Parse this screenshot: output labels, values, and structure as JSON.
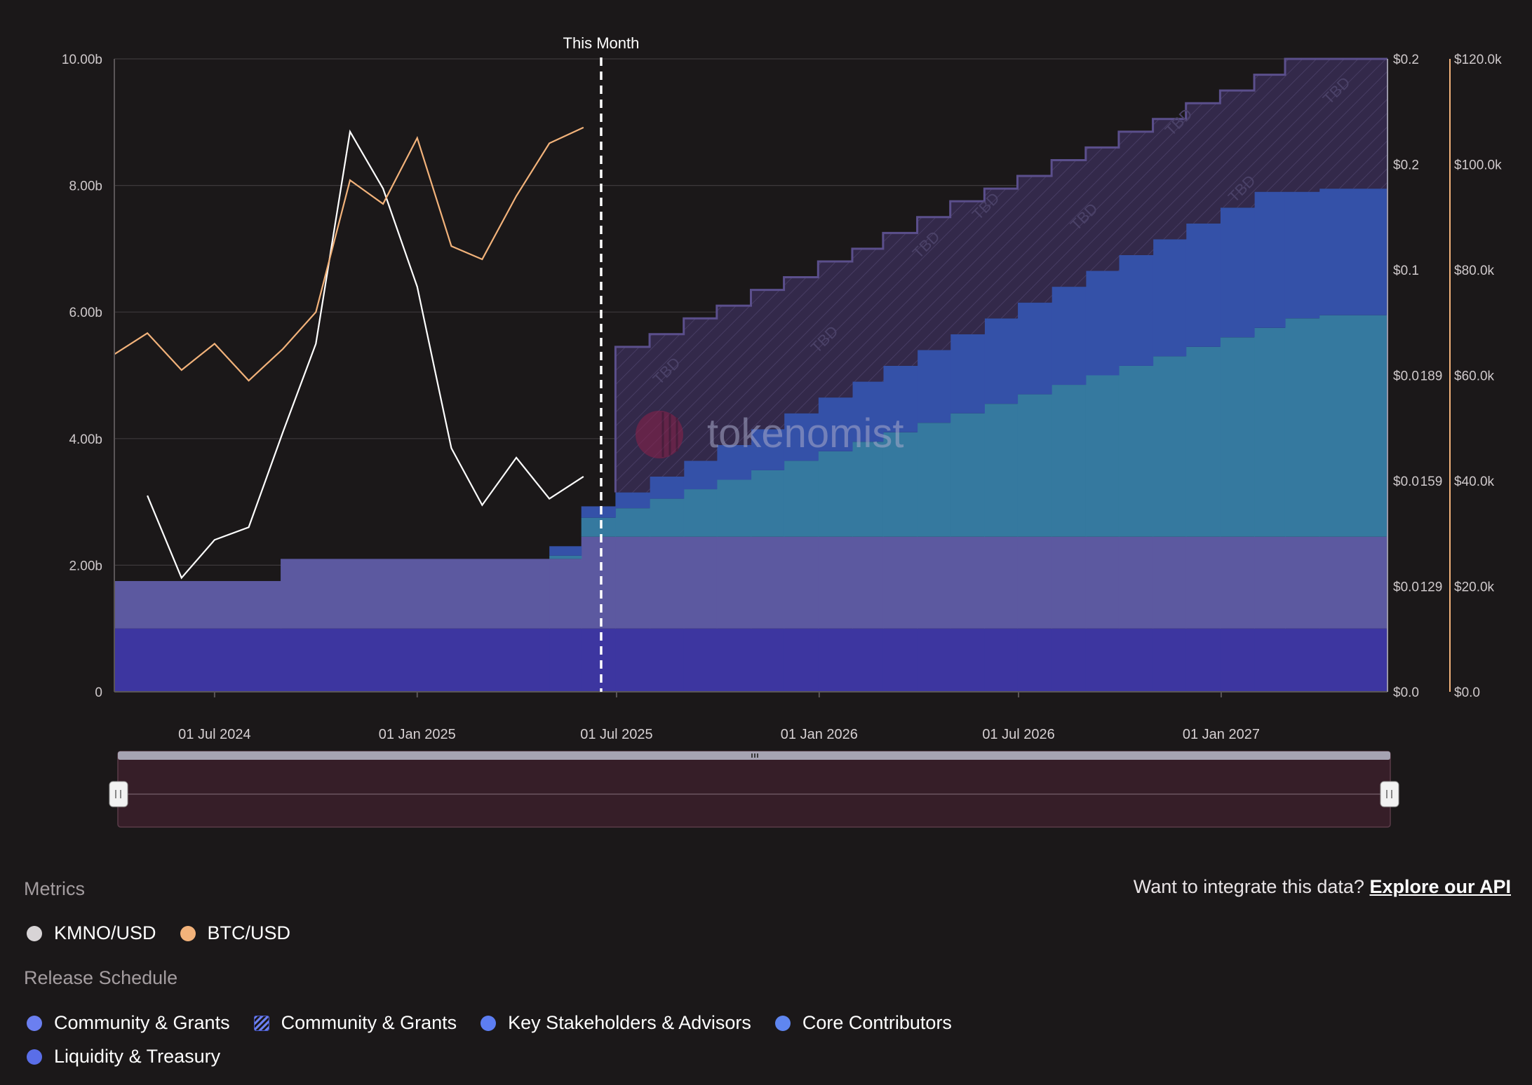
{
  "chart_data": {
    "type": "area",
    "annotation": "This Month",
    "annotation_x": "2025-06-17",
    "watermark": "tokenomist",
    "tbd_label": "TBD",
    "x_ticks": [
      "01 Jul 2024",
      "01 Jan 2025",
      "01 Jul 2025",
      "01 Jan 2026",
      "01 Jul 2026",
      "01 Jan 2027"
    ],
    "y_left_ticks": [
      "0",
      "2.00b",
      "4.00b",
      "6.00b",
      "8.00b",
      "10.00b"
    ],
    "y_left_lim": [
      0,
      10000000000
    ],
    "y_mid_ticks": [
      "$0.0",
      "$0.0 129",
      "$0.0 159",
      "$0.0 189",
      "$0.1",
      "$0.2",
      "$0.2"
    ],
    "y_right_ticks": [
      "$0.0",
      "$20.0k",
      "$40.0k",
      "$60.0k",
      "$80.0k",
      "$100.0k",
      "$120.0k"
    ],
    "y_right_lim": [
      0,
      120000
    ],
    "x_range": [
      "2024-04-01",
      "2027-06-01"
    ],
    "grid": true,
    "series": [
      {
        "name": "Liquidity & Treasury",
        "color": "#3d36a0",
        "points": [
          [
            "2024-04-01",
            1000000000
          ],
          [
            "2027-06-01",
            1000000000
          ]
        ]
      },
      {
        "name": "Community & Grants",
        "color": "#5c59a0",
        "points": [
          [
            "2024-04-01",
            750000000
          ],
          [
            "2024-08-30",
            1100000000
          ],
          [
            "2025-05-30",
            1450000000
          ],
          [
            "2027-06-01",
            1450000000
          ]
        ]
      },
      {
        "name": "Core Contributors",
        "color": "#35799f",
        "points": [
          [
            "2025-05-01",
            50000000
          ],
          [
            "2025-05-30",
            300000000
          ],
          [
            "2025-06-30",
            450000000
          ],
          [
            "2025-07-31",
            600000000
          ],
          [
            "2025-08-31",
            750000000
          ],
          [
            "2025-09-30",
            900000000
          ],
          [
            "2025-10-31",
            1050000000
          ],
          [
            "2025-11-30",
            1200000000
          ],
          [
            "2025-12-31",
            1350000000
          ],
          [
            "2026-01-31",
            1500000000
          ],
          [
            "2026-02-28",
            1650000000
          ],
          [
            "2026-03-31",
            1800000000
          ],
          [
            "2026-04-30",
            1950000000
          ],
          [
            "2026-05-31",
            2100000000
          ],
          [
            "2026-06-30",
            2250000000
          ],
          [
            "2026-07-31",
            2400000000
          ],
          [
            "2026-08-31",
            2550000000
          ],
          [
            "2026-09-30",
            2700000000
          ],
          [
            "2026-10-31",
            2850000000
          ],
          [
            "2026-11-30",
            3000000000
          ],
          [
            "2026-12-31",
            3150000000
          ],
          [
            "2027-01-31",
            3300000000
          ],
          [
            "2027-02-28",
            3450000000
          ],
          [
            "2027-03-31",
            3500000000
          ]
        ]
      },
      {
        "name": "Key Stakeholders & Advisors",
        "color": "#3451a8",
        "points": [
          [
            "2025-05-01",
            150000000
          ],
          [
            "2025-05-30",
            180000000
          ],
          [
            "2025-06-30",
            250000000
          ],
          [
            "2025-07-31",
            350000000
          ],
          [
            "2025-08-31",
            450000000
          ],
          [
            "2025-09-30",
            550000000
          ],
          [
            "2025-10-31",
            650000000
          ],
          [
            "2025-11-30",
            750000000
          ],
          [
            "2025-12-31",
            850000000
          ],
          [
            "2026-01-31",
            950000000
          ],
          [
            "2026-02-28",
            1050000000
          ],
          [
            "2026-03-31",
            1150000000
          ],
          [
            "2026-04-30",
            1250000000
          ],
          [
            "2026-05-31",
            1350000000
          ],
          [
            "2026-06-30",
            1450000000
          ],
          [
            "2026-07-31",
            1550000000
          ],
          [
            "2026-08-31",
            1650000000
          ],
          [
            "2026-09-30",
            1750000000
          ],
          [
            "2026-10-31",
            1850000000
          ],
          [
            "2026-11-30",
            1950000000
          ],
          [
            "2026-12-31",
            2050000000
          ],
          [
            "2027-01-31",
            2150000000
          ],
          [
            "2027-02-28",
            2000000000
          ],
          [
            "2027-03-31",
            2000000000
          ]
        ]
      },
      {
        "name": "Community & Grants (TBD)",
        "color": "#3a3055",
        "points": [
          [
            "2025-06-30",
            5450000000
          ],
          [
            "2025-07-31",
            5650000000
          ],
          [
            "2025-08-31",
            5900000000
          ],
          [
            "2025-09-30",
            6100000000
          ],
          [
            "2025-10-31",
            6350000000
          ],
          [
            "2025-11-30",
            6550000000
          ],
          [
            "2025-12-31",
            6800000000
          ],
          [
            "2026-01-31",
            7000000000
          ],
          [
            "2026-02-28",
            7250000000
          ],
          [
            "2026-03-31",
            7500000000
          ],
          [
            "2026-04-30",
            7750000000
          ],
          [
            "2026-05-31",
            7950000000
          ],
          [
            "2026-06-30",
            8150000000
          ],
          [
            "2026-07-31",
            8400000000
          ],
          [
            "2026-08-31",
            8600000000
          ],
          [
            "2026-09-30",
            8850000000
          ],
          [
            "2026-10-31",
            9050000000
          ],
          [
            "2026-11-30",
            9300000000
          ],
          [
            "2026-12-31",
            9500000000
          ],
          [
            "2027-01-31",
            9750000000
          ],
          [
            "2027-02-28",
            10000000000
          ],
          [
            "2027-03-31",
            10000000000
          ]
        ]
      }
    ],
    "price_series": [
      {
        "name": "KMNO/USD",
        "color": "#ffffff",
        "points": [
          [
            "2024-05-01",
            3.1
          ],
          [
            "2024-06-01",
            1.8
          ],
          [
            "2024-07-01",
            2.4
          ],
          [
            "2024-08-01",
            2.6
          ],
          [
            "2024-09-01",
            4.1
          ],
          [
            "2024-10-01",
            5.5
          ],
          [
            "2024-11-01",
            8.85
          ],
          [
            "2024-12-01",
            7.95
          ],
          [
            "2025-01-01",
            6.4
          ],
          [
            "2025-02-01",
            3.85
          ],
          [
            "2025-03-01",
            2.95
          ],
          [
            "2025-04-01",
            3.7
          ],
          [
            "2025-05-01",
            3.05
          ],
          [
            "2025-06-01",
            3.4
          ]
        ]
      },
      {
        "name": "BTC/USD",
        "color": "#f2b27a",
        "points": [
          [
            "2024-04-01",
            64000
          ],
          [
            "2024-05-01",
            68000
          ],
          [
            "2024-06-01",
            61000
          ],
          [
            "2024-07-01",
            66000
          ],
          [
            "2024-08-01",
            59000
          ],
          [
            "2024-09-01",
            65000
          ],
          [
            "2024-10-01",
            72000
          ],
          [
            "2024-11-01",
            97000
          ],
          [
            "2024-12-01",
            92500
          ],
          [
            "2025-01-01",
            105000
          ],
          [
            "2025-02-01",
            84500
          ],
          [
            "2025-03-01",
            82000
          ],
          [
            "2025-04-01",
            94000
          ],
          [
            "2025-05-01",
            104000
          ],
          [
            "2025-06-01",
            107000
          ]
        ]
      }
    ]
  },
  "metrics": {
    "title": "Metrics",
    "items": [
      {
        "label": "KMNO/USD",
        "color": "#d8d4d6"
      },
      {
        "label": "BTC/USD",
        "color": "#f2b27a"
      }
    ]
  },
  "release_schedule": {
    "title": "Release Schedule",
    "items": [
      {
        "label": "Community & Grants",
        "color": "#6b7ff0",
        "style": "solid"
      },
      {
        "label": "Community & Grants",
        "color": "#6b7ff0",
        "style": "hatch"
      },
      {
        "label": "Key Stakeholders & Advisors",
        "color": "#5d7ef2",
        "style": "solid"
      },
      {
        "label": "Core Contributors",
        "color": "#5f86f0",
        "style": "solid"
      },
      {
        "label": "Liquidity & Treasury",
        "color": "#5a6ee8",
        "style": "solid"
      }
    ]
  },
  "api": {
    "prompt": "Want to integrate this data?",
    "link": "Explore our API"
  }
}
